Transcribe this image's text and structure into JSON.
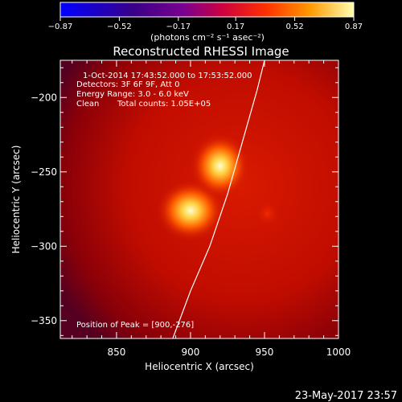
{
  "chart_data": {
    "type": "heatmap",
    "title": "Reconstructed RHESSI Image",
    "xlabel": "Heliocentric X (arcsec)",
    "ylabel": "Heliocentric Y (arcsec)",
    "xlim": [
      812,
      1000
    ],
    "ylim": [
      -362,
      -175
    ],
    "xticks": [
      850,
      900,
      950,
      1000
    ],
    "yticks": [
      -200,
      -250,
      -300,
      -350
    ],
    "colorbar": {
      "label": "(photons cm⁻² s⁻¹ asec⁻²)",
      "range": [
        -0.87,
        0.87
      ],
      "ticks": [
        "-0.87",
        "-0.52",
        "-0.17",
        "0.17",
        "0.52",
        "0.87"
      ]
    },
    "annotations": {
      "time": "1-Oct-2014 17:43:52.000 to 17:53:52.000",
      "detectors": "Detectors: 3F 6F 9F, Att 0",
      "energy": "Energy Range: 3.0 - 6.0 keV",
      "clean": "Clean",
      "counts": "Total counts: 1.05E+05",
      "peak": "Position of Peak = [900,-276]"
    },
    "sources": [
      {
        "x": 900,
        "y": -276,
        "intensity": 0.87
      },
      {
        "x": 920,
        "y": -246,
        "intensity": 0.7
      },
      {
        "x": 952,
        "y": -278,
        "intensity": 0.35
      }
    ],
    "limb": [
      [
        888,
        -362
      ],
      [
        900,
        -330
      ],
      [
        913,
        -300
      ],
      [
        925,
        -265
      ],
      [
        935,
        -230
      ],
      [
        945,
        -195
      ],
      [
        950,
        -175
      ]
    ],
    "footer": "23-May-2017 23:57"
  }
}
